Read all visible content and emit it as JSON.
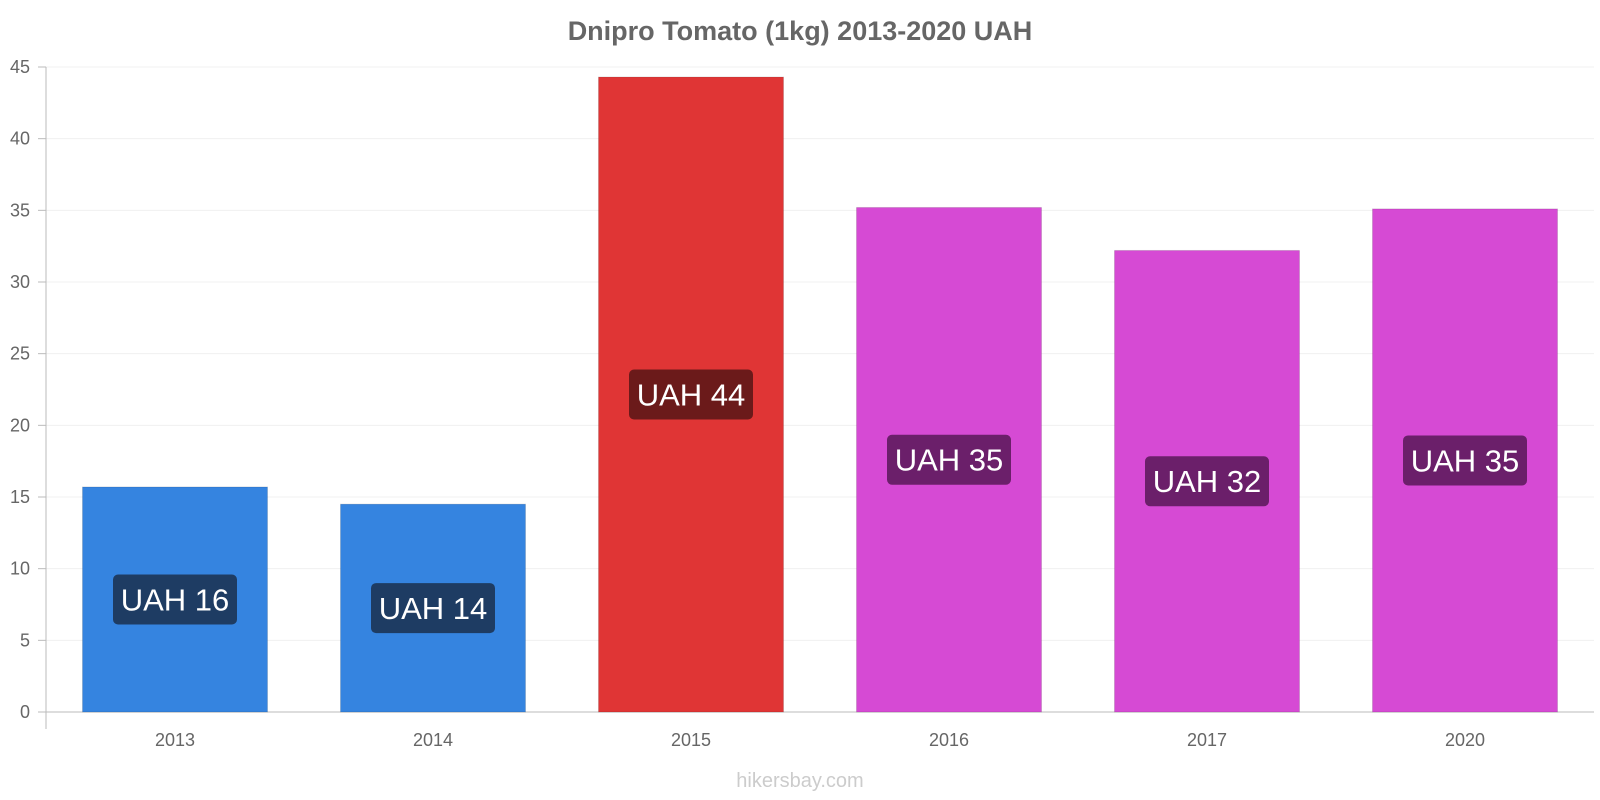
{
  "chart_data": {
    "type": "bar",
    "title": "Dnipro Tomato (1kg) 2013-2020 UAH",
    "xlabel": "",
    "ylabel": "",
    "ylim": [
      0,
      45
    ],
    "yticks": [
      0,
      5,
      10,
      15,
      20,
      25,
      30,
      35,
      40,
      45
    ],
    "grid": true,
    "categories": [
      "2013",
      "2014",
      "2015",
      "2016",
      "2017",
      "2020"
    ],
    "values": [
      15.7,
      14.5,
      44.3,
      35.2,
      32.2,
      35.1
    ],
    "labels": [
      "UAH 16",
      "UAH 14",
      "UAH 44",
      "UAH 35",
      "UAH 32",
      "UAH 35"
    ],
    "bar_colors": [
      "#3584e0",
      "#3584e0",
      "#e03535",
      "#d64ad4",
      "#d64ad4",
      "#d64ad4"
    ],
    "label_bg_colors": [
      "#1e3c63",
      "#1e3c63",
      "#6b1a1a",
      "#6b1f6a",
      "#6b1f6a",
      "#6b1f6a"
    ]
  },
  "footer": "hikersbay.com"
}
